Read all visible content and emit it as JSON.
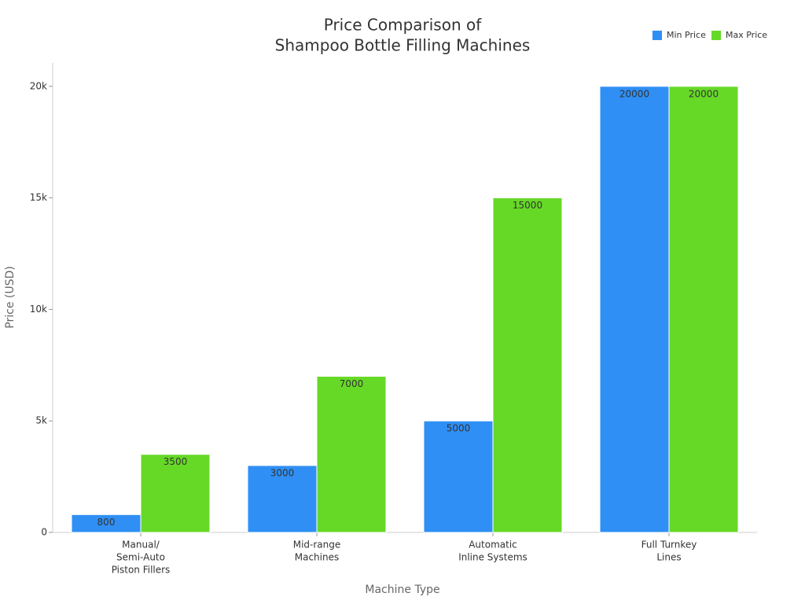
{
  "chart_data": {
    "type": "bar",
    "title": [
      "Price Comparison of",
      "Shampoo Bottle Filling Machines"
    ],
    "x_label": "Machine Type",
    "y_label": "Price (USD)",
    "categories": [
      [
        "Manual/",
        "Semi-Auto",
        "Piston Fillers"
      ],
      [
        "Mid-range",
        "Machines"
      ],
      [
        "Automatic",
        "Inline Systems"
      ],
      [
        "Full Turnkey",
        "Lines"
      ]
    ],
    "series": [
      {
        "name": "Min Price",
        "color": "#2f8ff5",
        "values": [
          800,
          3000,
          5000,
          20000
        ]
      },
      {
        "name": "Max Price",
        "color": "#66d926",
        "values": [
          3500,
          7000,
          15000,
          20000
        ]
      }
    ],
    "ylim": [
      0,
      21050
    ],
    "yticks": [
      0,
      {
        "value": 5000,
        "label": "5k"
      },
      {
        "value": 10000,
        "label": "10k"
      },
      {
        "value": 15000,
        "label": "15k"
      },
      {
        "value": 20000,
        "label": "20k"
      }
    ],
    "legend": "top-right"
  }
}
